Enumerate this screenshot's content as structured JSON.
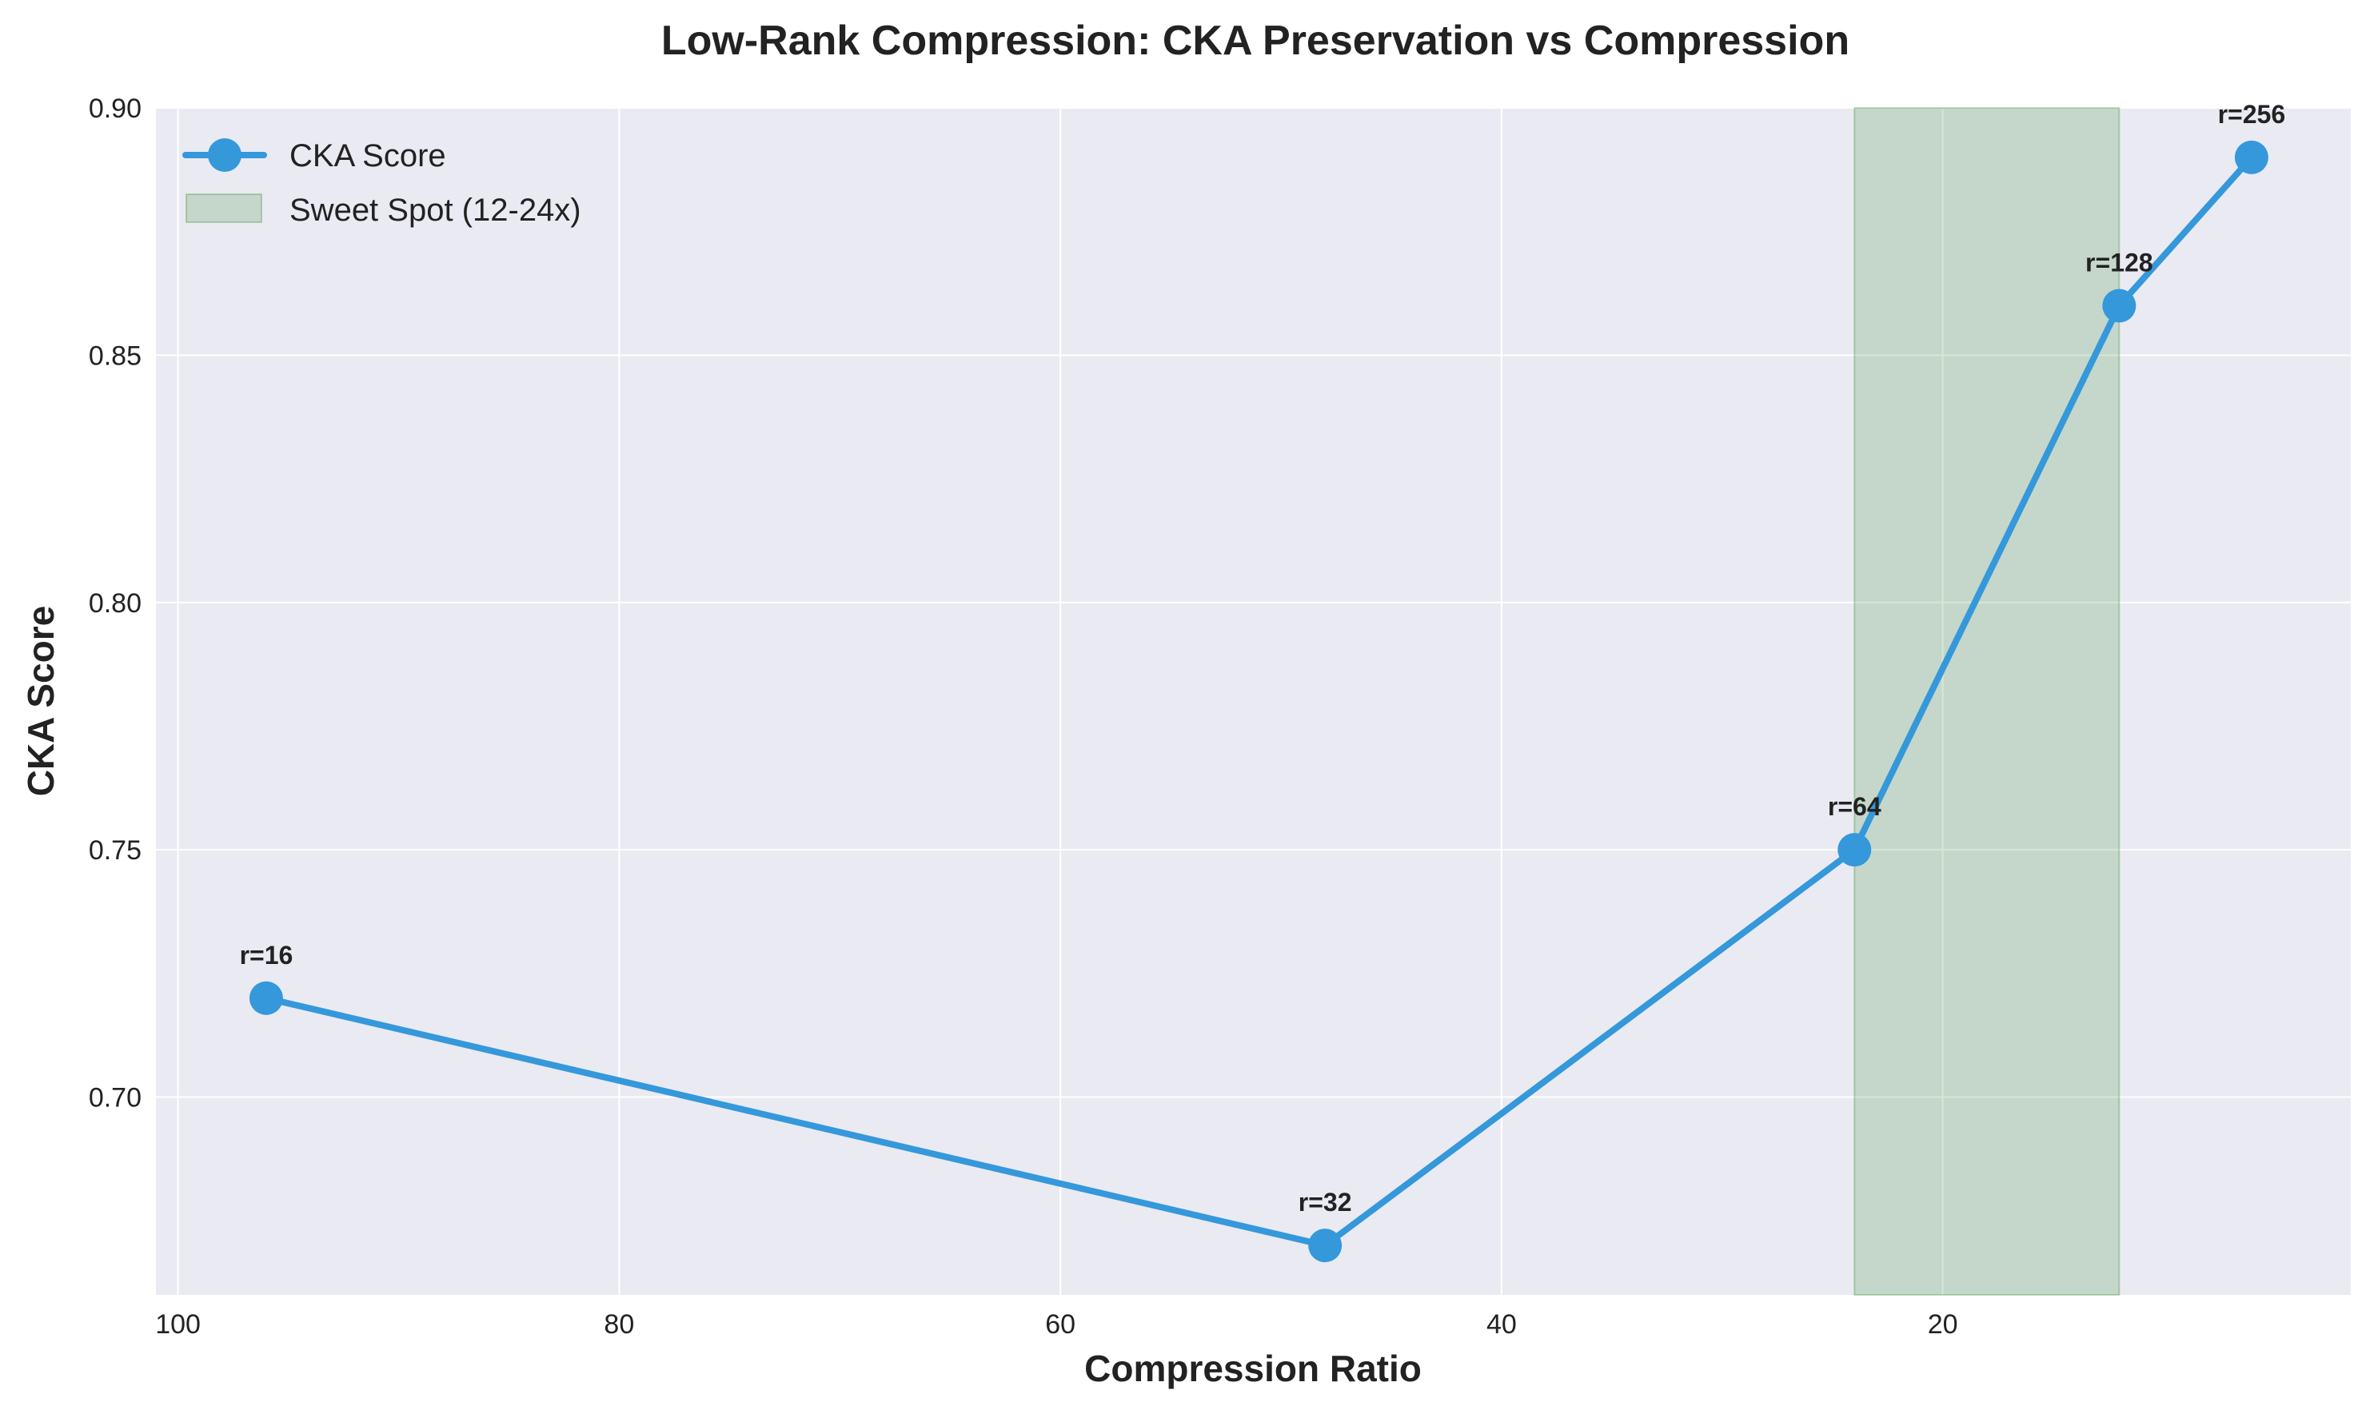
{
  "chart_data": {
    "type": "line",
    "title": "Low-Rank Compression: CKA Preservation vs Compression",
    "xlabel": "Compression Ratio",
    "ylabel": "CKA Score",
    "x_inverted": true,
    "xlim": [
      101,
      1.5
    ],
    "ylim": [
      0.66,
      0.9
    ],
    "x_ticks": [
      100,
      80,
      60,
      40,
      20
    ],
    "x_tick_labels": [
      "100",
      "80",
      "60",
      "40",
      "20"
    ],
    "y_ticks": [
      0.7,
      0.75,
      0.8,
      0.85,
      0.9
    ],
    "y_tick_labels": [
      "0.70",
      "0.75",
      "0.80",
      "0.85",
      "0.90"
    ],
    "grid": true,
    "legend_position": "top-left",
    "series": [
      {
        "name": "CKA Score",
        "color": "#3498db",
        "x": [
          96,
          48,
          24,
          12,
          6
        ],
        "y": [
          0.72,
          0.67,
          0.75,
          0.86,
          0.89
        ],
        "point_labels": [
          "r=16",
          "r=32",
          "r=64",
          "r=128",
          "r=256"
        ]
      }
    ],
    "shaded_region": {
      "name": "Sweet Spot (12-24x)",
      "x_range": [
        24,
        12
      ],
      "color": "#2e8b2e"
    }
  }
}
